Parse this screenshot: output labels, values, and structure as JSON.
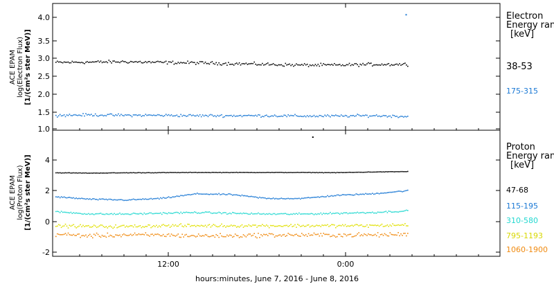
{
  "x_axis_title": "hours:minutes, June  7, 2016 - June  8, 2016",
  "chart_data": [
    {
      "type": "scatter",
      "panel": "top",
      "ylabel": [
        "ACE EPAM",
        "log(Electron Flux)",
        "[1/(cm²s ster MeV)]"
      ],
      "ylim": [
        0.92,
        4.28
      ],
      "yticks": [
        "1.0",
        "1.5",
        "2.0",
        "2.5",
        "3.0",
        "3.5",
        "4.0"
      ],
      "xticks": [
        "12:00",
        "0:00"
      ],
      "legend": {
        "title": [
          "Electron",
          "Energy ran",
          "[keV]"
        ],
        "placement": "right"
      },
      "series": [
        {
          "name": "38-53",
          "color": "#000000",
          "level": 2.68,
          "trend": [
            2.73,
            2.74,
            2.75,
            2.73,
            2.72,
            2.7,
            2.68,
            2.66,
            2.66,
            2.68,
            2.68
          ],
          "noise": 0.06
        },
        {
          "name": "175-315",
          "color": "#1a78d4",
          "level": 1.32,
          "trend": [
            1.33,
            1.34,
            1.33,
            1.33,
            1.32,
            1.32,
            1.32,
            1.31,
            1.31,
            1.32,
            1.3
          ],
          "noise": 0.05
        }
      ],
      "outliers": [
        {
          "x": 0.995,
          "y": 4.0,
          "color": "#1a78d4"
        }
      ]
    },
    {
      "type": "scatter",
      "panel": "bottom",
      "ylabel": [
        "ACE EPAM",
        "log(Proton Flux)",
        "[1/(cm²s ster MeV)]"
      ],
      "ylim": [
        -2.2,
        5.9
      ],
      "yticks": [
        "-2",
        "0",
        "2",
        "4"
      ],
      "xticks": [
        "12:00",
        "0:00"
      ],
      "legend": {
        "title": [
          "Proton",
          "Energy ran",
          "[keV]"
        ],
        "placement": "right"
      },
      "series": [
        {
          "name": "47-68",
          "color": "#000000",
          "level": 3.2,
          "trend": [
            3.2,
            3.18,
            3.2,
            3.21,
            3.22,
            3.22,
            3.22,
            3.22,
            3.21,
            3.25,
            3.28
          ],
          "noise": 0.02
        },
        {
          "name": "115-195",
          "color": "#1a78d4",
          "level": 1.6,
          "trend": [
            1.65,
            1.5,
            1.45,
            1.55,
            1.85,
            1.8,
            1.55,
            1.55,
            1.75,
            1.85,
            2.05
          ],
          "noise": 0.06
        },
        {
          "name": "310-580",
          "color": "#22d8d0",
          "level": 0.6,
          "trend": [
            0.7,
            0.55,
            0.55,
            0.6,
            0.65,
            0.6,
            0.55,
            0.55,
            0.6,
            0.65,
            0.75
          ],
          "noise": 0.08
        },
        {
          "name": "795-1193",
          "color": "#e0e000",
          "level": -0.2,
          "trend": [
            -0.2,
            -0.25,
            -0.25,
            -0.2,
            -0.2,
            -0.2,
            -0.2,
            -0.2,
            -0.2,
            -0.2,
            -0.15
          ],
          "noise": 0.15
        },
        {
          "name": "1060-1900",
          "color": "#f08a10",
          "level": -0.8,
          "trend": [
            -0.75,
            -0.85,
            -0.8,
            -0.8,
            -0.85,
            -0.85,
            -0.8,
            -0.8,
            -0.8,
            -0.8,
            -0.75
          ],
          "noise": 0.2
        }
      ],
      "outliers": [
        {
          "x": 0.73,
          "y": 5.5,
          "color": "#000000"
        }
      ]
    }
  ]
}
